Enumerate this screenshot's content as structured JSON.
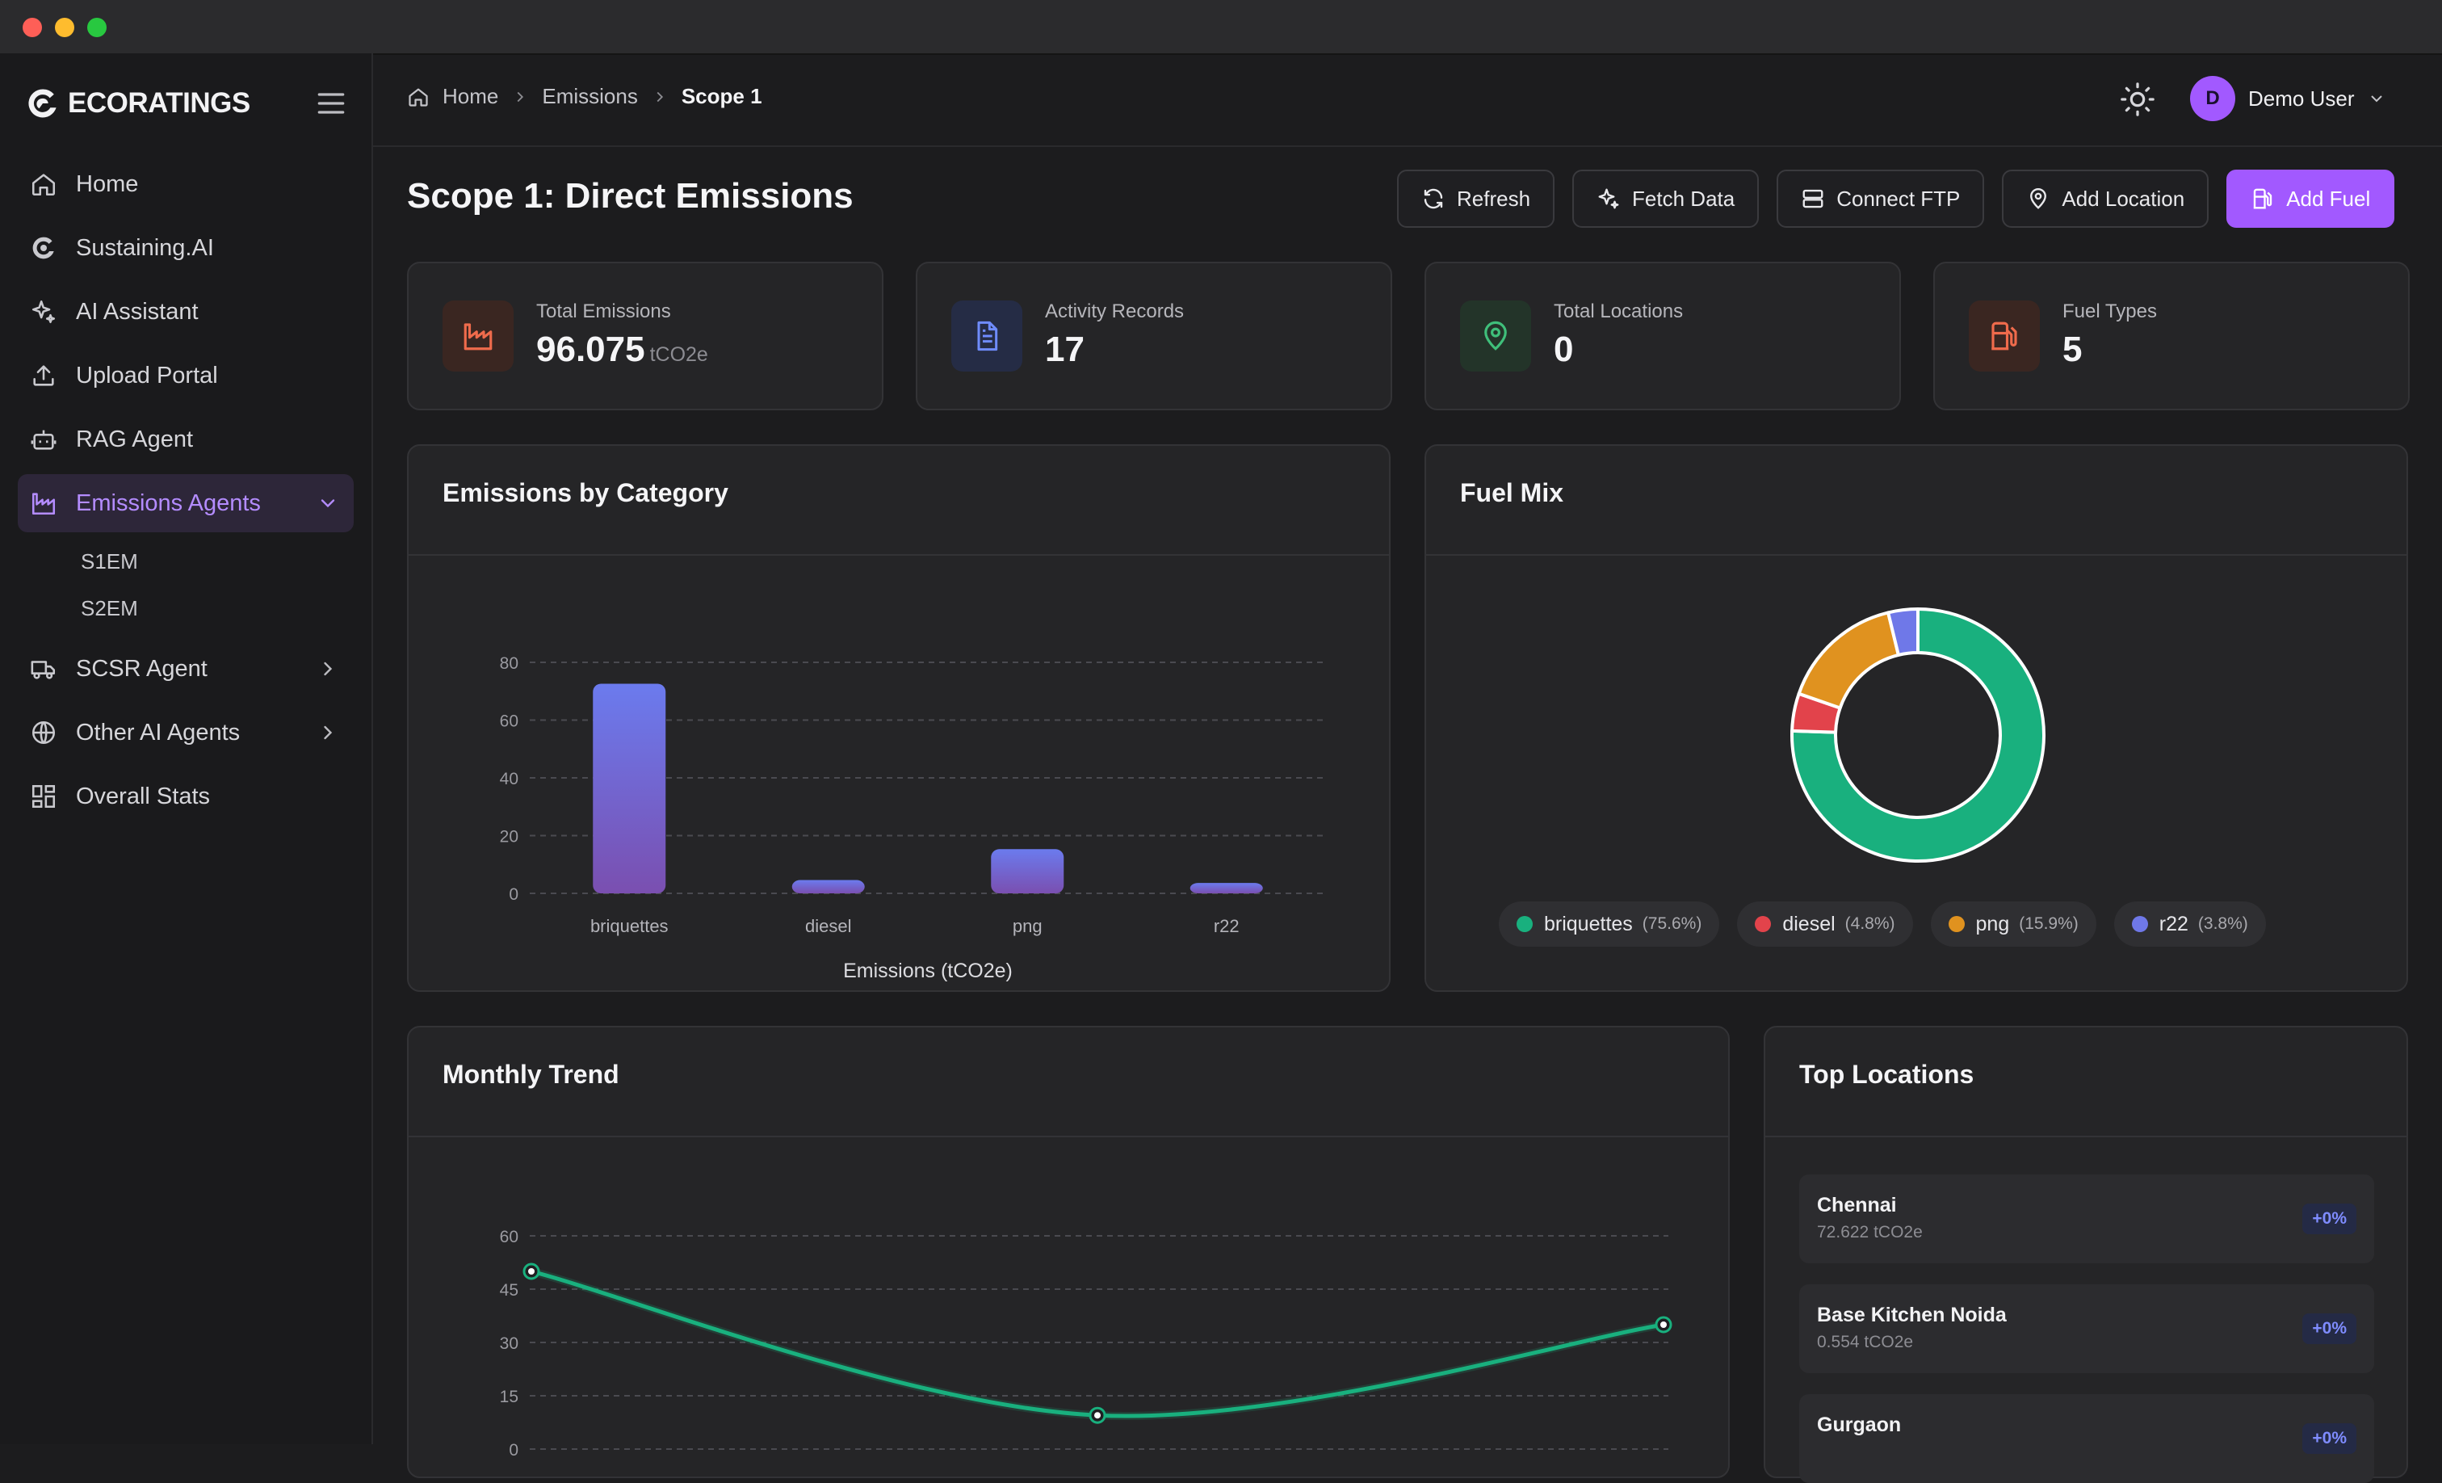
{
  "brand": {
    "name": "ECORATINGS"
  },
  "sidebar": {
    "items": [
      {
        "label": "Home",
        "icon": "home-icon"
      },
      {
        "label": "Sustaining.AI",
        "icon": "logo-icon"
      },
      {
        "label": "AI Assistant",
        "icon": "sparkles-icon"
      },
      {
        "label": "Upload Portal",
        "icon": "upload-icon"
      },
      {
        "label": "RAG Agent",
        "icon": "bot-icon"
      },
      {
        "label": "Emissions Agents",
        "icon": "factory-icon",
        "active": true
      },
      {
        "label": "SCSR Agent",
        "icon": "truck-icon"
      },
      {
        "label": "Other AI Agents",
        "icon": "globe-icon"
      },
      {
        "label": "Overall Stats",
        "icon": "grid-icon"
      }
    ],
    "subitems": [
      "S1EM",
      "S2EM"
    ]
  },
  "breadcrumb": [
    "Home",
    "Emissions",
    "Scope 1"
  ],
  "user": {
    "initial": "D",
    "name": "Demo User"
  },
  "page": {
    "title": "Scope 1: Direct Emissions"
  },
  "actions": [
    "Refresh",
    "Fetch Data",
    "Connect FTP",
    "Add Location",
    "Add Fuel"
  ],
  "stats": [
    {
      "label": "Total Emissions",
      "value": "96.075",
      "unit": "tCO2e",
      "color": "#ef6b4c"
    },
    {
      "label": "Activity Records",
      "value": "17",
      "color": "#6f8cff"
    },
    {
      "label": "Total Locations",
      "value": "0",
      "color": "#3fbf7a"
    },
    {
      "label": "Fuel Types",
      "value": "5",
      "color": "#ef6b4c"
    }
  ],
  "panels": {
    "category": "Emissions by Category",
    "fuel_mix": "Fuel Mix",
    "trend": "Monthly Trend",
    "locations": "Top Locations"
  },
  "chart_data": [
    {
      "type": "bar",
      "title": "Emissions by Category",
      "categories": [
        "briquettes",
        "diesel",
        "png",
        "r22"
      ],
      "values": [
        72.6,
        4.6,
        15.3,
        3.6
      ],
      "xlabel": "Emissions (tCO2e)",
      "ylim": [
        0,
        80
      ],
      "yticks": [
        "0",
        "20",
        "40",
        "60",
        "80"
      ],
      "grid": true,
      "color": "#6c6fe0"
    },
    {
      "type": "pie",
      "title": "Fuel Mix",
      "slices": [
        {
          "label": "briquettes",
          "pct_label": "(75.6%)",
          "value": 75.6,
          "color": "#19b07e"
        },
        {
          "label": "diesel",
          "pct_label": "(4.8%)",
          "value": 4.8,
          "color": "#e2434b"
        },
        {
          "label": "png",
          "pct_label": "(15.9%)",
          "value": 15.9,
          "color": "#e0921f"
        },
        {
          "label": "r22",
          "pct_label": "(3.8%)",
          "value": 3.8,
          "color": "#6f78e8"
        }
      ]
    },
    {
      "type": "line",
      "title": "Monthly Trend",
      "x": [
        0,
        1,
        2
      ],
      "values": [
        50,
        9.5,
        35
      ],
      "ylim": [
        0,
        60
      ],
      "yticks": [
        "0",
        "15",
        "30",
        "45",
        "60"
      ],
      "grid": true,
      "color": "#19b07e"
    }
  ],
  "locations": [
    {
      "name": "Chennai",
      "value": "72.622 tCO2e",
      "change": "+0%"
    },
    {
      "name": "Base Kitchen Noida",
      "value": "0.554 tCO2e",
      "change": "+0%"
    },
    {
      "name": "Gurgaon",
      "value": "",
      "change": "+0%"
    }
  ]
}
